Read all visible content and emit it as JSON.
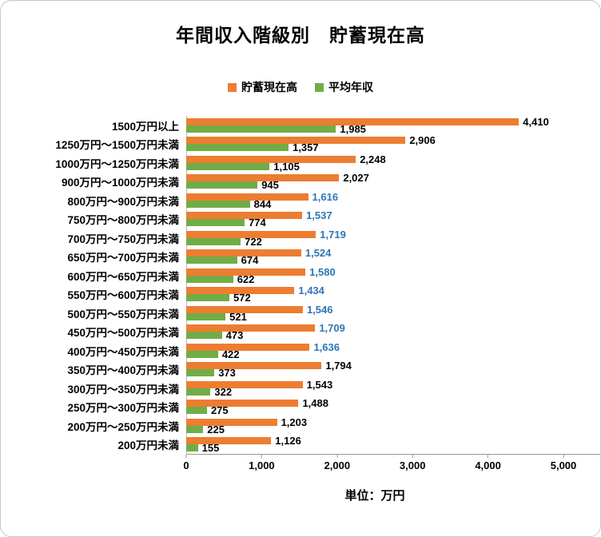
{
  "title": "年間収入階級別　貯蓄現在高",
  "legend": [
    {
      "label": "貯蓄現在高",
      "color": "#ED7D31"
    },
    {
      "label": "平均年収",
      "color": "#70AD47"
    }
  ],
  "axis": {
    "ticks": [
      "0",
      "1,000",
      "2,000",
      "3,000",
      "4,000",
      "5,000"
    ],
    "unit_label": "単位：万円"
  },
  "chart_data": {
    "type": "bar",
    "orientation": "horizontal",
    "title": "年間収入階級別　貯蓄現在高",
    "legend_position": "top",
    "xlim": [
      0,
      5000
    ],
    "x_ticks": [
      0,
      1000,
      2000,
      3000,
      4000,
      5000
    ],
    "grid": false,
    "value_label_color_default": "#000000",
    "value_label_color_highlight": "#2E75B6",
    "categories": [
      "1500万円以上",
      "1250万円～1500万円未満",
      "1000万円～1250万円未満",
      "900万円～1000万円未満",
      "800万円～900万円未満",
      "750万円～800万円未満",
      "700万円～750万円未満",
      "650万円～700万円未満",
      "600万円～650万円未満",
      "550万円～600万円未満",
      "500万円～550万円未満",
      "450万円～500万円未満",
      "400万円～450万円未満",
      "350万円～400万円未満",
      "300万円～350万円未満",
      "250万円～300万円未満",
      "200万円～250万円未満",
      "200万円未満"
    ],
    "series": [
      {
        "name": "貯蓄現在高",
        "color": "#ED7D31",
        "values": [
          4410,
          2906,
          2248,
          2027,
          1616,
          1537,
          1719,
          1524,
          1580,
          1434,
          1546,
          1709,
          1636,
          1794,
          1543,
          1488,
          1203,
          1126
        ],
        "labels": [
          "4,410",
          "2,906",
          "2,248",
          "2,027",
          "1,616",
          "1,537",
          "1,719",
          "1,524",
          "1,580",
          "1,434",
          "1,546",
          "1,709",
          "1,636",
          "1,794",
          "1,543",
          "1,488",
          "1,203",
          "1,126"
        ],
        "label_colors": [
          "#000000",
          "#000000",
          "#000000",
          "#000000",
          "#2E75B6",
          "#2E75B6",
          "#2E75B6",
          "#2E75B6",
          "#2E75B6",
          "#2E75B6",
          "#2E75B6",
          "#2E75B6",
          "#2E75B6",
          "#000000",
          "#000000",
          "#000000",
          "#000000",
          "#000000"
        ]
      },
      {
        "name": "平均年収",
        "color": "#70AD47",
        "values": [
          1985,
          1357,
          1105,
          945,
          844,
          774,
          722,
          674,
          622,
          572,
          521,
          473,
          422,
          373,
          322,
          275,
          225,
          155
        ],
        "labels": [
          "1,985",
          "1,357",
          "1,105",
          "945",
          "844",
          "774",
          "722",
          "674",
          "622",
          "572",
          "521",
          "473",
          "422",
          "373",
          "322",
          "275",
          "225",
          "155"
        ],
        "label_colors": [
          "#000000",
          "#000000",
          "#000000",
          "#000000",
          "#000000",
          "#000000",
          "#000000",
          "#000000",
          "#000000",
          "#000000",
          "#000000",
          "#000000",
          "#000000",
          "#000000",
          "#000000",
          "#000000",
          "#000000",
          "#000000"
        ]
      }
    ]
  }
}
